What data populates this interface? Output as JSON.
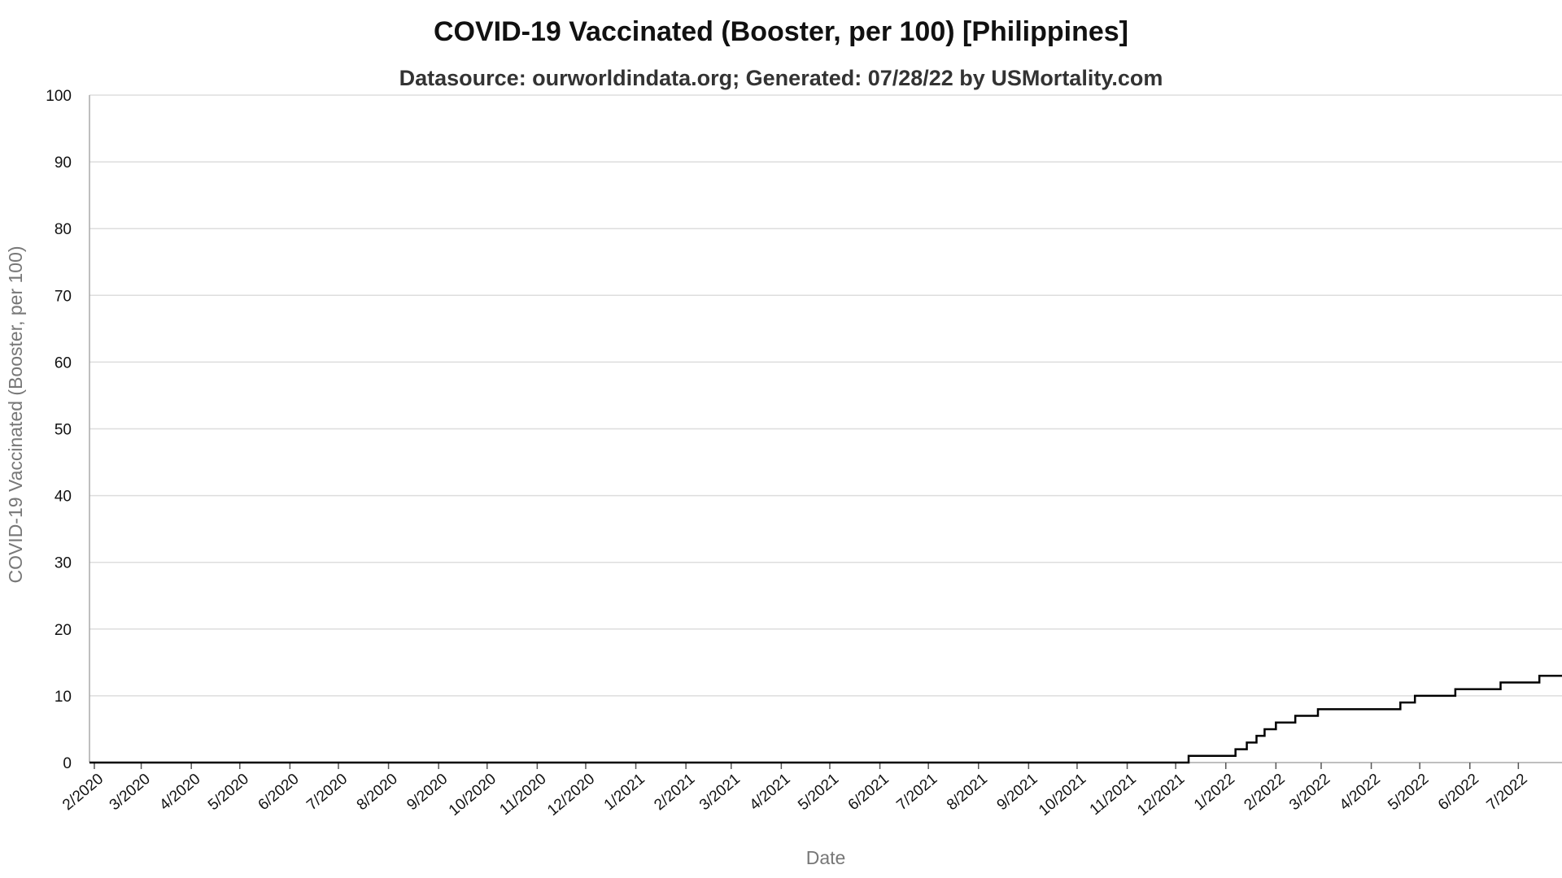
{
  "chart_data": {
    "type": "line",
    "title": "COVID-19 Vaccinated (Booster, per 100) [Philippines]",
    "subtitle": "Datasource: ourworldindata.org; Generated: 07/28/22 by USMortality.com",
    "xlabel": "Date",
    "ylabel": "COVID-19 Vaccinated (Booster, per 100)",
    "xlim": [
      "2020-01-29",
      "2022-07-28"
    ],
    "ylim": [
      0,
      100
    ],
    "y_ticks": [
      0,
      10,
      20,
      30,
      40,
      50,
      60,
      70,
      80,
      90,
      100
    ],
    "x_ticks": [
      {
        "date": "2020-02-01",
        "label": "2/2020"
      },
      {
        "date": "2020-03-01",
        "label": "3/2020"
      },
      {
        "date": "2020-04-01",
        "label": "4/2020"
      },
      {
        "date": "2020-05-01",
        "label": "5/2020"
      },
      {
        "date": "2020-06-01",
        "label": "6/2020"
      },
      {
        "date": "2020-07-01",
        "label": "7/2020"
      },
      {
        "date": "2020-08-01",
        "label": "8/2020"
      },
      {
        "date": "2020-09-01",
        "label": "9/2020"
      },
      {
        "date": "2020-10-01",
        "label": "10/2020"
      },
      {
        "date": "2020-11-01",
        "label": "11/2020"
      },
      {
        "date": "2020-12-01",
        "label": "12/2020"
      },
      {
        "date": "2021-01-01",
        "label": "1/2021"
      },
      {
        "date": "2021-02-01",
        "label": "2/2021"
      },
      {
        "date": "2021-03-01",
        "label": "3/2021"
      },
      {
        "date": "2021-04-01",
        "label": "4/2021"
      },
      {
        "date": "2021-05-01",
        "label": "5/2021"
      },
      {
        "date": "2021-06-01",
        "label": "6/2021"
      },
      {
        "date": "2021-07-01",
        "label": "7/2021"
      },
      {
        "date": "2021-08-01",
        "label": "8/2021"
      },
      {
        "date": "2021-09-01",
        "label": "9/2021"
      },
      {
        "date": "2021-10-01",
        "label": "10/2021"
      },
      {
        "date": "2021-11-01",
        "label": "11/2021"
      },
      {
        "date": "2021-12-01",
        "label": "12/2021"
      },
      {
        "date": "2022-01-01",
        "label": "1/2022"
      },
      {
        "date": "2022-02-01",
        "label": "2/2022"
      },
      {
        "date": "2022-03-01",
        "label": "3/2022"
      },
      {
        "date": "2022-04-01",
        "label": "4/2022"
      },
      {
        "date": "2022-05-01",
        "label": "5/2022"
      },
      {
        "date": "2022-06-01",
        "label": "6/2022"
      },
      {
        "date": "2022-07-01",
        "label": "7/2022"
      }
    ],
    "grid": true,
    "step": true,
    "series": [
      {
        "name": "",
        "color": "#000000",
        "points": [
          {
            "x": "2020-01-29",
            "y": 0
          },
          {
            "x": "2021-12-09",
            "y": 0
          },
          {
            "x": "2021-12-09",
            "y": 1
          },
          {
            "x": "2022-01-07",
            "y": 1
          },
          {
            "x": "2022-01-07",
            "y": 2
          },
          {
            "x": "2022-01-14",
            "y": 2
          },
          {
            "x": "2022-01-14",
            "y": 3
          },
          {
            "x": "2022-01-20",
            "y": 3
          },
          {
            "x": "2022-01-20",
            "y": 4
          },
          {
            "x": "2022-01-25",
            "y": 4
          },
          {
            "x": "2022-01-25",
            "y": 5
          },
          {
            "x": "2022-02-01",
            "y": 5
          },
          {
            "x": "2022-02-01",
            "y": 6
          },
          {
            "x": "2022-02-13",
            "y": 6
          },
          {
            "x": "2022-02-13",
            "y": 7
          },
          {
            "x": "2022-02-27",
            "y": 7
          },
          {
            "x": "2022-02-27",
            "y": 8
          },
          {
            "x": "2022-04-19",
            "y": 8
          },
          {
            "x": "2022-04-19",
            "y": 9
          },
          {
            "x": "2022-04-28",
            "y": 9
          },
          {
            "x": "2022-04-28",
            "y": 10
          },
          {
            "x": "2022-05-23",
            "y": 10
          },
          {
            "x": "2022-05-23",
            "y": 11
          },
          {
            "x": "2022-06-20",
            "y": 11
          },
          {
            "x": "2022-06-20",
            "y": 12
          },
          {
            "x": "2022-07-14",
            "y": 12
          },
          {
            "x": "2022-07-14",
            "y": 13
          },
          {
            "x": "2022-07-28",
            "y": 13
          }
        ]
      }
    ]
  }
}
